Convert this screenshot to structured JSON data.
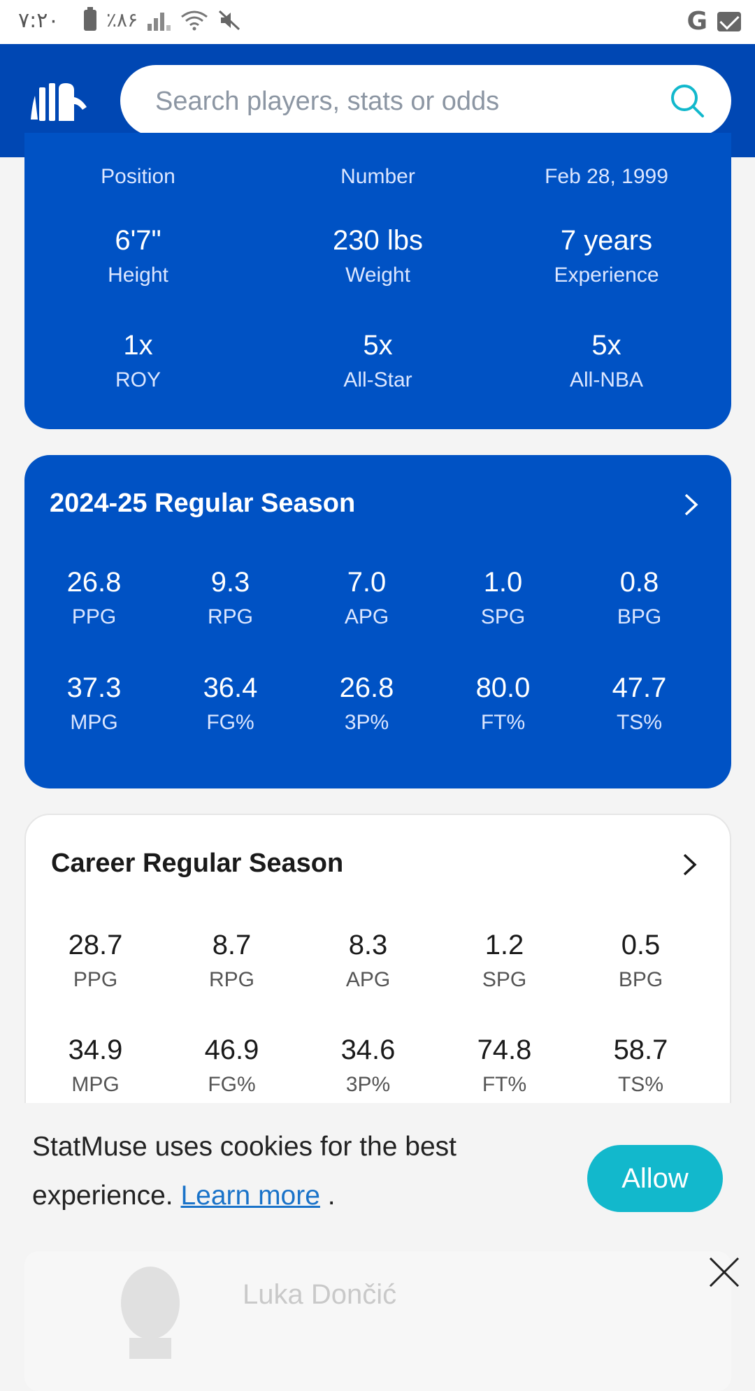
{
  "status_bar": {
    "time": "۷:۲۰",
    "battery": "٪۸۶"
  },
  "search": {
    "placeholder": "Search players, stats or odds"
  },
  "bio": {
    "top_row": [
      "Position",
      "Number",
      "Feb 28, 1999"
    ],
    "rows": [
      [
        {
          "value": "6'7\"",
          "label": "Height"
        },
        {
          "value": "230 lbs",
          "label": "Weight"
        },
        {
          "value": "7 years",
          "label": "Experience"
        }
      ],
      [
        {
          "value": "1x",
          "label": "ROY"
        },
        {
          "value": "5x",
          "label": "All-Star"
        },
        {
          "value": "5x",
          "label": "All-NBA"
        }
      ]
    ]
  },
  "season": {
    "title": "2024-25 Regular Season",
    "stats": [
      [
        {
          "value": "26.8",
          "label": "PPG"
        },
        {
          "value": "9.3",
          "label": "RPG"
        },
        {
          "value": "7.0",
          "label": "APG"
        },
        {
          "value": "1.0",
          "label": "SPG"
        },
        {
          "value": "0.8",
          "label": "BPG"
        }
      ],
      [
        {
          "value": "37.3",
          "label": "MPG"
        },
        {
          "value": "36.4",
          "label": "FG%"
        },
        {
          "value": "26.8",
          "label": "3P%"
        },
        {
          "value": "80.0",
          "label": "FT%"
        },
        {
          "value": "47.7",
          "label": "TS%"
        }
      ]
    ]
  },
  "career": {
    "title": "Career Regular Season",
    "stats": [
      [
        {
          "value": "28.7",
          "label": "PPG"
        },
        {
          "value": "8.7",
          "label": "RPG"
        },
        {
          "value": "8.3",
          "label": "APG"
        },
        {
          "value": "1.2",
          "label": "SPG"
        },
        {
          "value": "0.5",
          "label": "BPG"
        }
      ],
      [
        {
          "value": "34.9",
          "label": "MPG"
        },
        {
          "value": "46.9",
          "label": "FG%"
        },
        {
          "value": "34.6",
          "label": "3P%"
        },
        {
          "value": "74.8",
          "label": "FT%"
        },
        {
          "value": "58.7",
          "label": "TS%"
        }
      ]
    ]
  },
  "cookie": {
    "text": "StatMuse uses cookies for the best experience.",
    "link": "Learn more",
    "suffix": ".",
    "allow_label": "Allow"
  },
  "player": {
    "name": "Luka Dončić"
  },
  "colors": {
    "header": "#0047b3",
    "card_blue": "#0052c4",
    "accent": "#12b8cc"
  }
}
